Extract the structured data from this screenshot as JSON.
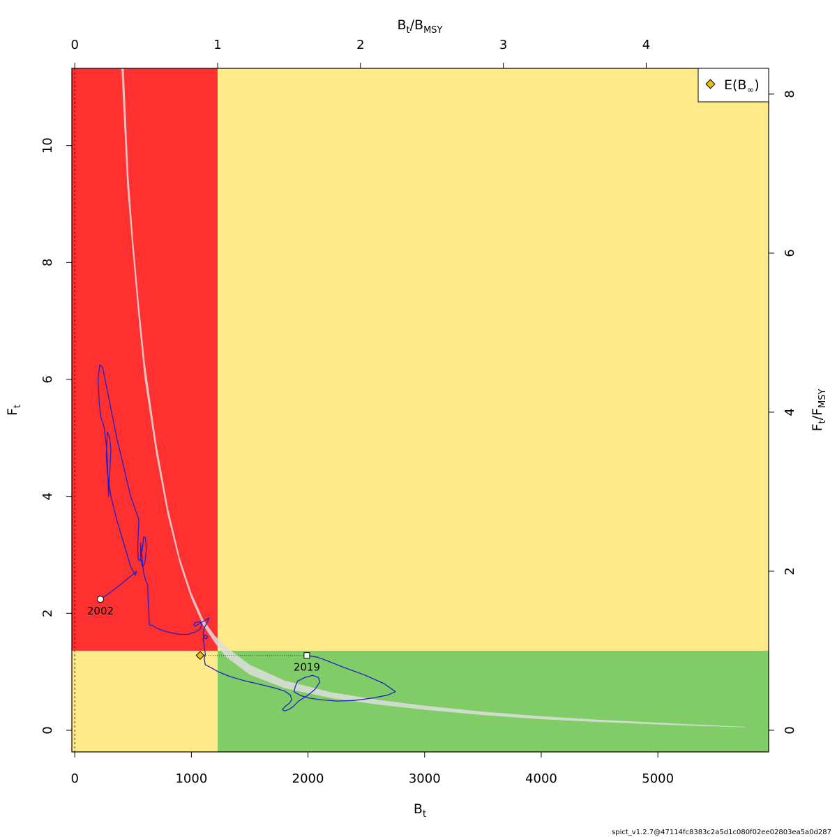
{
  "chart_data": {
    "type": "scatter",
    "title": "",
    "xlabel": "B",
    "xlabel_sub": "t",
    "ylabel": "F",
    "ylabel_sub": "t",
    "x2label": {
      "a": "B",
      "a_sub": "t",
      "b": "B",
      "b_sub": "MSY"
    },
    "y2label": {
      "a": "F",
      "a_sub": "t",
      "b": "F",
      "b_sub": "MSY"
    },
    "xlim": [
      -25,
      5950
    ],
    "ylim": [
      -0.37,
      11.32
    ],
    "xticks": [
      0,
      1000,
      2000,
      3000,
      4000,
      5000
    ],
    "xtick_labels": [
      "0",
      "1000",
      "2000",
      "3000",
      "4000",
      "5000"
    ],
    "yticks": [
      0,
      2,
      4,
      6,
      8,
      10
    ],
    "ytick_labels": [
      "0",
      "2",
      "4",
      "6",
      "8",
      "10"
    ],
    "x2ticks": [
      0,
      1,
      2,
      3,
      4
    ],
    "x2tick_labels": [
      "0",
      "1",
      "2",
      "3",
      "4"
    ],
    "y2ticks": [
      0,
      2,
      4,
      6,
      8
    ],
    "y2tick_labels": [
      "0",
      "2",
      "4",
      "6",
      "8"
    ],
    "Bmsy": 1225,
    "Fmsy": 1.36,
    "grid": false,
    "zones": {
      "red": "#ff3030",
      "yellow": "#ffea8a",
      "green": "#80cc66"
    },
    "msy_band": {
      "color": "#dddddd",
      "opacity": 0.85,
      "lower": [
        [
          400,
          11.32
        ],
        [
          450,
          9.3
        ],
        [
          500,
          8.1
        ],
        [
          550,
          7.0
        ],
        [
          600,
          6.0
        ],
        [
          700,
          4.7
        ],
        [
          800,
          3.65
        ],
        [
          900,
          2.85
        ],
        [
          1000,
          2.25
        ],
        [
          1100,
          1.8
        ],
        [
          1200,
          1.5
        ],
        [
          1300,
          1.25
        ],
        [
          1500,
          0.95
        ],
        [
          1800,
          0.72
        ],
        [
          2200,
          0.55
        ],
        [
          2600,
          0.44
        ],
        [
          3000,
          0.35
        ],
        [
          3500,
          0.26
        ],
        [
          4000,
          0.19
        ],
        [
          4500,
          0.14
        ],
        [
          5000,
          0.1
        ],
        [
          5400,
          0.07
        ],
        [
          5750,
          0.05
        ]
      ],
      "upper": [
        [
          5750,
          0.06
        ],
        [
          5400,
          0.09
        ],
        [
          5000,
          0.13
        ],
        [
          4500,
          0.18
        ],
        [
          4000,
          0.24
        ],
        [
          3500,
          0.32
        ],
        [
          3000,
          0.42
        ],
        [
          2600,
          0.52
        ],
        [
          2200,
          0.65
        ],
        [
          1800,
          0.85
        ],
        [
          1500,
          1.12
        ],
        [
          1300,
          1.42
        ],
        [
          1200,
          1.62
        ],
        [
          1100,
          1.9
        ],
        [
          1000,
          2.35
        ],
        [
          900,
          2.95
        ],
        [
          800,
          3.8
        ],
        [
          700,
          4.9
        ],
        [
          600,
          6.3
        ],
        [
          550,
          7.3
        ],
        [
          500,
          8.4
        ],
        [
          460,
          9.5
        ],
        [
          420,
          11.32
        ]
      ]
    },
    "trajectory": {
      "color": "#2020cc",
      "points": [
        [
          220,
          2.24
        ],
        [
          300,
          2.35
        ],
        [
          380,
          2.47
        ],
        [
          470,
          2.62
        ],
        [
          530,
          2.72
        ],
        [
          520,
          2.65
        ],
        [
          480,
          2.8
        ],
        [
          420,
          3.2
        ],
        [
          360,
          3.6
        ],
        [
          310,
          4.0
        ],
        [
          280,
          4.4
        ],
        [
          270,
          4.7
        ],
        [
          280,
          5.1
        ],
        [
          300,
          5.0
        ],
        [
          310,
          4.8
        ],
        [
          305,
          4.6
        ],
        [
          300,
          4.4
        ],
        [
          295,
          4.2
        ],
        [
          290,
          4.0
        ],
        [
          285,
          4.3
        ],
        [
          280,
          4.6
        ],
        [
          270,
          4.9
        ],
        [
          250,
          5.2
        ],
        [
          225,
          5.35
        ],
        [
          210,
          5.6
        ],
        [
          200,
          6.0
        ],
        [
          215,
          6.25
        ],
        [
          240,
          6.2
        ],
        [
          270,
          5.9
        ],
        [
          310,
          5.5
        ],
        [
          360,
          5.0
        ],
        [
          420,
          4.5
        ],
        [
          480,
          4.0
        ],
        [
          550,
          3.6
        ],
        [
          545,
          3.4
        ],
        [
          540,
          3.1
        ],
        [
          545,
          2.92
        ],
        [
          560,
          2.9
        ],
        [
          580,
          3.1
        ],
        [
          590,
          3.3
        ],
        [
          605,
          3.3
        ],
        [
          615,
          3.1
        ],
        [
          600,
          2.85
        ],
        [
          580,
          2.8
        ],
        [
          565,
          2.95
        ],
        [
          565,
          3.2
        ],
        [
          570,
          3.1
        ],
        [
          590,
          2.7
        ],
        [
          610,
          2.55
        ],
        [
          625,
          2.5
        ],
        [
          630,
          2.2
        ],
        [
          640,
          1.8
        ],
        [
          660,
          1.8
        ],
        [
          700,
          1.75
        ],
        [
          760,
          1.7
        ],
        [
          820,
          1.67
        ],
        [
          900,
          1.64
        ],
        [
          970,
          1.64
        ],
        [
          1030,
          1.68
        ],
        [
          1070,
          1.72
        ],
        [
          1090,
          1.8
        ],
        [
          1070,
          1.86
        ],
        [
          1030,
          1.84
        ],
        [
          1020,
          1.81
        ],
        [
          1030,
          1.78
        ],
        [
          1050,
          1.8
        ],
        [
          1080,
          1.84
        ],
        [
          1110,
          1.87
        ],
        [
          1150,
          1.92
        ],
        [
          1140,
          1.86
        ],
        [
          1110,
          1.75
        ],
        [
          1100,
          1.64
        ],
        [
          1110,
          1.58
        ],
        [
          1130,
          1.56
        ],
        [
          1140,
          1.6
        ],
        [
          1120,
          1.63
        ],
        [
          1100,
          1.58
        ],
        [
          1110,
          1.45
        ],
        [
          1120,
          1.3
        ],
        [
          1110,
          1.22
        ],
        [
          1120,
          1.12
        ],
        [
          1160,
          1.08
        ],
        [
          1230,
          1.0
        ],
        [
          1330,
          0.92
        ],
        [
          1450,
          0.85
        ],
        [
          1600,
          0.78
        ],
        [
          1720,
          0.72
        ],
        [
          1800,
          0.67
        ],
        [
          1850,
          0.6
        ],
        [
          1860,
          0.52
        ],
        [
          1840,
          0.46
        ],
        [
          1800,
          0.4
        ],
        [
          1780,
          0.35
        ],
        [
          1800,
          0.33
        ],
        [
          1840,
          0.36
        ],
        [
          1870,
          0.4
        ],
        [
          1920,
          0.5
        ],
        [
          2000,
          0.6
        ],
        [
          2060,
          0.7
        ],
        [
          2100,
          0.82
        ],
        [
          2090,
          0.9
        ],
        [
          2040,
          0.94
        ],
        [
          1970,
          0.9
        ],
        [
          1910,
          0.84
        ],
        [
          1890,
          0.74
        ],
        [
          1880,
          0.66
        ],
        [
          1930,
          0.6
        ],
        [
          2010,
          0.55
        ],
        [
          2120,
          0.52
        ],
        [
          2250,
          0.5
        ],
        [
          2400,
          0.51
        ],
        [
          2550,
          0.55
        ],
        [
          2680,
          0.6
        ],
        [
          2750,
          0.66
        ],
        [
          2650,
          0.8
        ],
        [
          2480,
          0.95
        ],
        [
          2300,
          1.08
        ],
        [
          2150,
          1.2
        ],
        [
          2080,
          1.25
        ],
        [
          1990,
          1.28
        ]
      ]
    },
    "start": {
      "label": "2002",
      "B": 220,
      "F": 2.24
    },
    "end": {
      "label": "2019",
      "B": 1990,
      "F": 1.28
    },
    "equilibrium": {
      "B": 1075,
      "F": 1.28,
      "color": "#f0c000"
    },
    "legend": {
      "position": "top-right",
      "text": "E(B",
      "sym": "∞",
      "close": ")"
    }
  },
  "footer": "spict_v1.2.7@47114fc8383c2a5d1c080f02ee02803ea5a0d287"
}
